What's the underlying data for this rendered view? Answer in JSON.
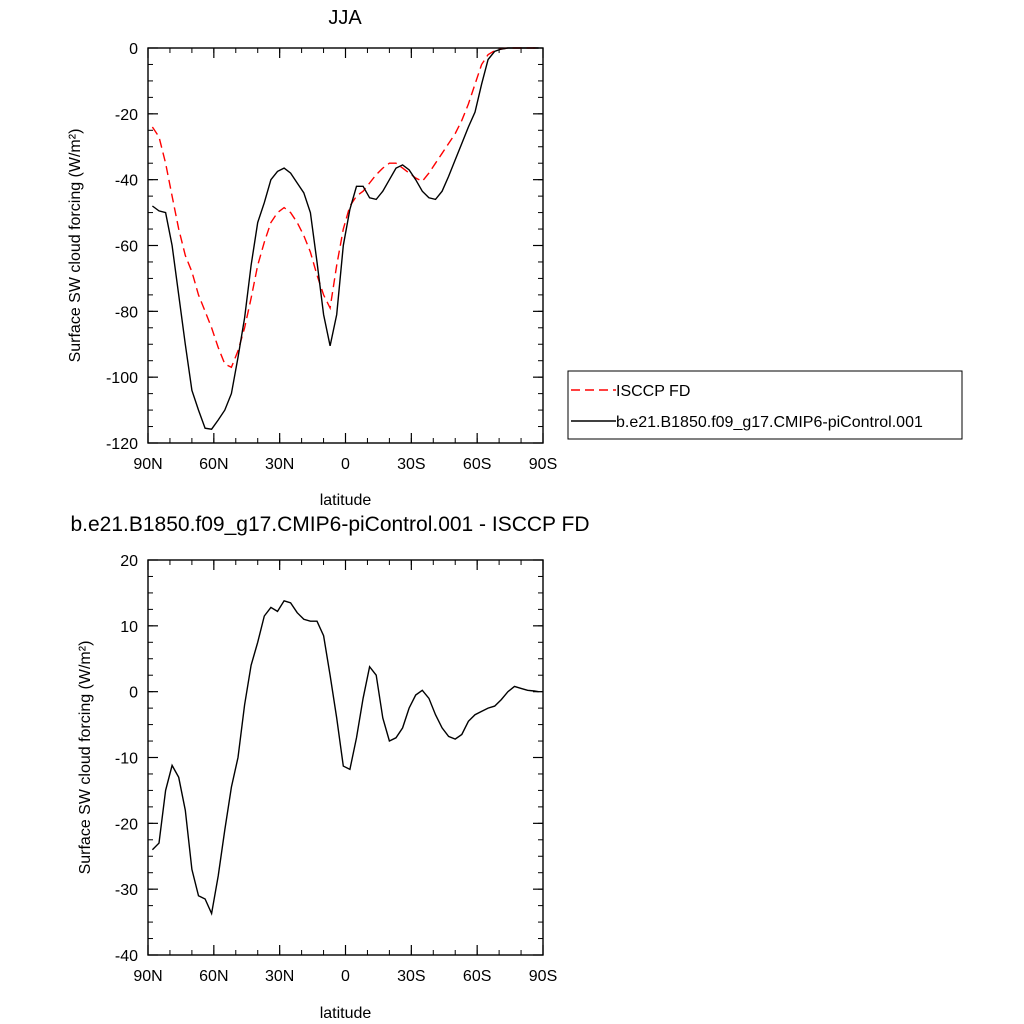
{
  "chart_data": [
    {
      "type": "line",
      "title": "JJA",
      "xlabel": "latitude",
      "ylabel": "Surface SW cloud forcing (W/m²)",
      "xlim": [
        90,
        -90
      ],
      "ylim": [
        -120,
        0
      ],
      "xticks": [
        90,
        60,
        30,
        0,
        -30,
        -60,
        -90
      ],
      "xtick_labels": [
        "90N",
        "60N",
        "30N",
        "0",
        "30S",
        "60S",
        "90S"
      ],
      "yticks": [
        0,
        -20,
        -40,
        -60,
        -80,
        -100,
        -120
      ],
      "ytick_labels": [
        "0",
        "-20",
        "-40",
        "-60",
        "-80",
        "-100",
        "-120"
      ],
      "legend_position": "right, outside plot",
      "series": [
        {
          "name": "ISCCP FD",
          "color": "#ff0000",
          "dash": "dashed",
          "points": [
            [
              88,
              -24
            ],
            [
              85,
              -27
            ],
            [
              82,
              -35
            ],
            [
              79,
              -45
            ],
            [
              76,
              -55
            ],
            [
              73,
              -63
            ],
            [
              70,
              -68
            ],
            [
              67,
              -75
            ],
            [
              64,
              -80
            ],
            [
              61,
              -85
            ],
            [
              58,
              -91
            ],
            [
              55,
              -96
            ],
            [
              52,
              -97
            ],
            [
              49,
              -92
            ],
            [
              46,
              -85
            ],
            [
              43,
              -76
            ],
            [
              40,
              -66
            ],
            [
              37,
              -59
            ],
            [
              34,
              -53
            ],
            [
              31,
              -50
            ],
            [
              28,
              -48.5
            ],
            [
              25,
              -50
            ],
            [
              22,
              -53
            ],
            [
              19,
              -57
            ],
            [
              16,
              -62
            ],
            [
              13,
              -69
            ],
            [
              10,
              -75
            ],
            [
              7,
              -79
            ],
            [
              4,
              -66
            ],
            [
              1,
              -55
            ],
            [
              -2,
              -48
            ],
            [
              -5,
              -45
            ],
            [
              -8,
              -43.5
            ],
            [
              -11,
              -41
            ],
            [
              -14,
              -38.5
            ],
            [
              -17,
              -36.5
            ],
            [
              -20,
              -35
            ],
            [
              -23,
              -35
            ],
            [
              -26,
              -36.5
            ],
            [
              -29,
              -38
            ],
            [
              -32,
              -39.5
            ],
            [
              -35,
              -40.5
            ],
            [
              -38,
              -38
            ],
            [
              -41,
              -35
            ],
            [
              -44,
              -32
            ],
            [
              -47,
              -29
            ],
            [
              -50,
              -26
            ],
            [
              -53,
              -22
            ],
            [
              -56,
              -17
            ],
            [
              -59,
              -11
            ],
            [
              -62,
              -5
            ],
            [
              -65,
              -2
            ],
            [
              -68,
              -0.8
            ],
            [
              -71,
              -0.3
            ],
            [
              -74,
              0
            ],
            [
              -80,
              0
            ],
            [
              -86,
              0
            ],
            [
              -88,
              0
            ]
          ]
        },
        {
          "name": "b.e21.B1850.f09_g17.CMIP6-piControl.001",
          "color": "#000000",
          "dash": "solid",
          "points": [
            [
              88,
              -48
            ],
            [
              85,
              -49.5
            ],
            [
              82,
              -50
            ],
            [
              79,
              -60
            ],
            [
              76,
              -75
            ],
            [
              73,
              -90
            ],
            [
              70,
              -104
            ],
            [
              67,
              -110
            ],
            [
              64,
              -115.5
            ],
            [
              61,
              -115.8
            ],
            [
              58,
              -113
            ],
            [
              55,
              -110
            ],
            [
              52,
              -105
            ],
            [
              49,
              -94
            ],
            [
              46,
              -82
            ],
            [
              43,
              -66
            ],
            [
              40,
              -53
            ],
            [
              37,
              -47
            ],
            [
              34,
              -40
            ],
            [
              31,
              -37.5
            ],
            [
              28,
              -36.5
            ],
            [
              25,
              -38
            ],
            [
              22,
              -41
            ],
            [
              19,
              -44
            ],
            [
              16,
              -50
            ],
            [
              13,
              -65
            ],
            [
              10,
              -81
            ],
            [
              7,
              -90.5
            ],
            [
              4,
              -81
            ],
            [
              1,
              -60
            ],
            [
              -2,
              -49
            ],
            [
              -5,
              -42
            ],
            [
              -8,
              -42
            ],
            [
              -11,
              -45.5
            ],
            [
              -14,
              -46
            ],
            [
              -17,
              -43.5
            ],
            [
              -20,
              -40
            ],
            [
              -23,
              -36.5
            ],
            [
              -26,
              -35.5
            ],
            [
              -29,
              -37
            ],
            [
              -32,
              -40
            ],
            [
              -35,
              -43.5
            ],
            [
              -38,
              -45.5
            ],
            [
              -41,
              -46
            ],
            [
              -44,
              -43.5
            ],
            [
              -47,
              -39
            ],
            [
              -50,
              -34
            ],
            [
              -53,
              -29
            ],
            [
              -56,
              -24
            ],
            [
              -59,
              -19.5
            ],
            [
              -62,
              -11
            ],
            [
              -65,
              -3.5
            ],
            [
              -68,
              -1
            ],
            [
              -71,
              -0.3
            ],
            [
              -74,
              0
            ],
            [
              -80,
              0
            ],
            [
              -86,
              0
            ],
            [
              -88,
              0
            ]
          ]
        }
      ]
    },
    {
      "type": "line",
      "title": "b.e21.B1850.f09_g17.CMIP6-piControl.001 - ISCCP FD",
      "xlabel": "latitude",
      "ylabel": "Surface SW cloud forcing (W/m²)",
      "xlim": [
        90,
        -90
      ],
      "ylim": [
        -40,
        20
      ],
      "xticks": [
        90,
        60,
        30,
        0,
        -30,
        -60,
        -90
      ],
      "xtick_labels": [
        "90N",
        "60N",
        "30N",
        "0",
        "30S",
        "60S",
        "90S"
      ],
      "yticks": [
        20,
        10,
        0,
        -10,
        -20,
        -30,
        -40
      ],
      "ytick_labels": [
        "20",
        "10",
        "0",
        "-10",
        "-20",
        "-30",
        "-40"
      ],
      "series": [
        {
          "color": "#000000",
          "dash": "solid",
          "points": [
            [
              88,
              -24
            ],
            [
              85,
              -23
            ],
            [
              82,
              -15
            ],
            [
              79,
              -11.2
            ],
            [
              76,
              -13
            ],
            [
              73,
              -18
            ],
            [
              70,
              -27
            ],
            [
              67,
              -31
            ],
            [
              64,
              -31.5
            ],
            [
              61,
              -33.7
            ],
            [
              58,
              -28
            ],
            [
              55,
              -21
            ],
            [
              52,
              -14.5
            ],
            [
              49,
              -10
            ],
            [
              46,
              -2
            ],
            [
              43,
              4
            ],
            [
              40,
              7.5
            ],
            [
              37,
              11.5
            ],
            [
              34,
              12.8
            ],
            [
              31,
              12.2
            ],
            [
              28,
              13.8
            ],
            [
              25,
              13.5
            ],
            [
              22,
              12
            ],
            [
              19,
              11
            ],
            [
              16,
              10.7
            ],
            [
              13,
              10.7
            ],
            [
              10,
              8.5
            ],
            [
              7,
              2.5
            ],
            [
              4,
              -4
            ],
            [
              1,
              -11.3
            ],
            [
              -2,
              -11.8
            ],
            [
              -5,
              -7
            ],
            [
              -8,
              -1
            ],
            [
              -11,
              3.8
            ],
            [
              -14,
              2.5
            ],
            [
              -17,
              -4
            ],
            [
              -20,
              -7.5
            ],
            [
              -23,
              -7
            ],
            [
              -26,
              -5.5
            ],
            [
              -29,
              -2.5
            ],
            [
              -32,
              -0.5
            ],
            [
              -35,
              0.2
            ],
            [
              -38,
              -1
            ],
            [
              -41,
              -3.5
            ],
            [
              -44,
              -5.5
            ],
            [
              -47,
              -6.8
            ],
            [
              -50,
              -7.2
            ],
            [
              -53,
              -6.5
            ],
            [
              -56,
              -4.5
            ],
            [
              -59,
              -3.5
            ],
            [
              -62,
              -3
            ],
            [
              -65,
              -2.5
            ],
            [
              -68,
              -2.2
            ],
            [
              -71,
              -1.2
            ],
            [
              -74,
              0
            ],
            [
              -77,
              0.8
            ],
            [
              -80,
              0.5
            ],
            [
              -83,
              0.2
            ],
            [
              -86,
              0.1
            ],
            [
              -88,
              0
            ]
          ]
        }
      ]
    }
  ]
}
